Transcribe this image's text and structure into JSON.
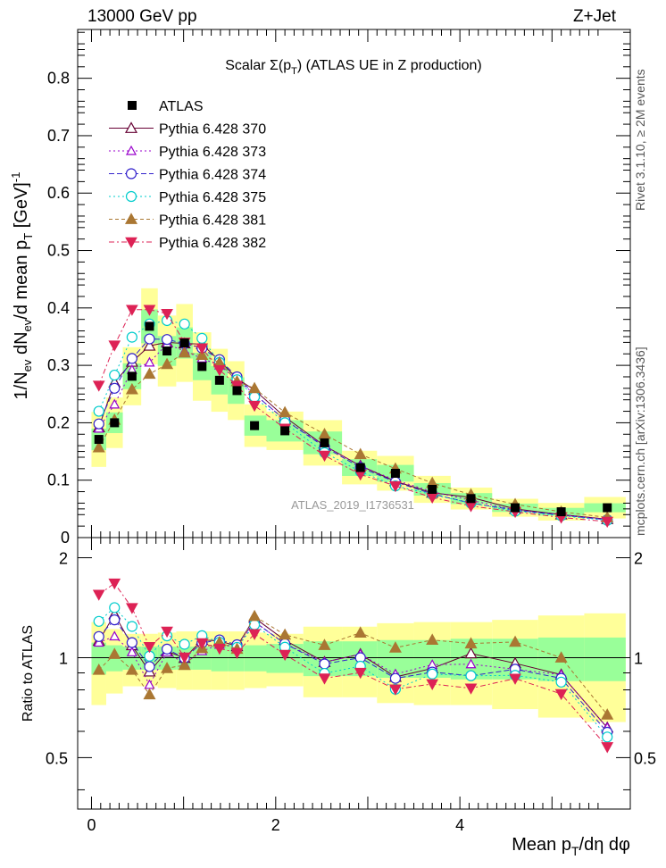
{
  "header": {
    "left": "13000 GeV pp",
    "right": "Z+Jet"
  },
  "side_labels": {
    "rivet": "Rivet 3.1.10, ≥ 2M events",
    "mcplots": "mcplots.cern.ch [arXiv:1306.3436]"
  },
  "chart_data": {
    "type": "scatter",
    "title": "Scalar Σ(p_T) (ATLAS UE in Z production)",
    "xlabel": "Mean p_T/dη dφ",
    "ylabel": "1/N_ev dN_ev/d mean p_T [GeV]^-1",
    "ratio_ylabel": "Ratio to ATLAS",
    "watermark": "ATLAS_2019_I1736531",
    "xlim": [
      -0.15,
      5.85
    ],
    "ylim": [
      0,
      0.885
    ],
    "ratio_ylim": [
      0.35,
      2.3
    ],
    "x_ticks": [
      "0",
      "2",
      "4"
    ],
    "y_ticks": [
      "0",
      "0.1",
      "0.2",
      "0.3",
      "0.4",
      "0.5",
      "0.6",
      "0.7",
      "0.8"
    ],
    "ratio_ticks": [
      "0.5",
      "1",
      "2"
    ],
    "legend_position": "top-left",
    "bins": [
      {
        "x": 0.08,
        "lo": 0.0,
        "hi": 0.16
      },
      {
        "x": 0.25,
        "lo": 0.16,
        "hi": 0.34
      },
      {
        "x": 0.44,
        "lo": 0.34,
        "hi": 0.54
      },
      {
        "x": 0.63,
        "lo": 0.54,
        "hi": 0.72
      },
      {
        "x": 0.82,
        "lo": 0.72,
        "hi": 0.92
      },
      {
        "x": 1.01,
        "lo": 0.92,
        "hi": 1.1
      },
      {
        "x": 1.2,
        "lo": 1.1,
        "hi": 1.3
      },
      {
        "x": 1.39,
        "lo": 1.3,
        "hi": 1.48
      },
      {
        "x": 1.58,
        "lo": 1.48,
        "hi": 1.66
      },
      {
        "x": 1.77,
        "lo": 1.66,
        "hi": 1.9
      },
      {
        "x": 2.1,
        "lo": 1.9,
        "hi": 2.3
      },
      {
        "x": 2.53,
        "lo": 2.3,
        "hi": 2.72
      },
      {
        "x": 2.92,
        "lo": 2.72,
        "hi": 3.1
      },
      {
        "x": 3.3,
        "lo": 3.1,
        "hi": 3.5
      },
      {
        "x": 3.7,
        "lo": 3.5,
        "hi": 3.9
      },
      {
        "x": 4.12,
        "lo": 3.9,
        "hi": 4.35
      },
      {
        "x": 4.6,
        "lo": 4.35,
        "hi": 4.85
      },
      {
        "x": 5.1,
        "lo": 4.85,
        "hi": 5.35
      },
      {
        "x": 5.6,
        "lo": 5.35,
        "hi": 5.8
      }
    ],
    "band_inner": [
      0.11,
      0.09,
      0.08,
      0.08,
      0.08,
      0.08,
      0.08,
      0.09,
      0.09,
      0.09,
      0.1,
      0.12,
      0.12,
      0.13,
      0.13,
      0.14,
      0.14,
      0.15,
      0.15
    ],
    "band_outer": [
      0.28,
      0.22,
      0.18,
      0.18,
      0.19,
      0.2,
      0.2,
      0.2,
      0.2,
      0.19,
      0.18,
      0.24,
      0.24,
      0.27,
      0.28,
      0.28,
      0.3,
      0.34,
      0.36
    ],
    "data": {
      "name": "ATLAS",
      "values": [
        0.171,
        0.2,
        0.281,
        0.368,
        0.325,
        0.339,
        0.298,
        0.274,
        0.256,
        0.195,
        0.186,
        0.165,
        0.122,
        0.112,
        0.084,
        0.068,
        0.052,
        0.045,
        0.052
      ]
    },
    "series": [
      {
        "name": "Pythia 6.428 370",
        "color": "#660033",
        "marker": "triangle-open",
        "dash": "",
        "values": [
          0.192,
          0.27,
          0.306,
          0.334,
          0.34,
          0.338,
          0.337,
          0.308,
          0.277,
          0.257,
          0.21,
          0.16,
          0.125,
          0.098,
          0.078,
          0.07,
          0.05,
          0.04,
          0.032
        ]
      },
      {
        "name": "Pythia 6.428 373",
        "color": "#9900cc",
        "marker": "triangle-open-small",
        "dash": "2,3",
        "values": [
          0.19,
          0.232,
          0.292,
          0.305,
          0.337,
          0.325,
          0.312,
          0.3,
          0.275,
          0.25,
          0.205,
          0.16,
          0.125,
          0.1,
          0.08,
          0.065,
          0.048,
          0.04,
          0.032
        ]
      },
      {
        "name": "Pythia 6.428 374",
        "color": "#3322cc",
        "marker": "circle-open",
        "dash": "6,3",
        "values": [
          0.198,
          0.26,
          0.312,
          0.346,
          0.345,
          0.338,
          0.33,
          0.31,
          0.28,
          0.25,
          0.205,
          0.158,
          0.122,
          0.097,
          0.076,
          0.06,
          0.048,
          0.039,
          0.031
        ]
      },
      {
        "name": "Pythia 6.428 375",
        "color": "#00cccc",
        "marker": "circle-open",
        "dash": "2,3",
        "values": [
          0.22,
          0.283,
          0.349,
          0.372,
          0.378,
          0.372,
          0.347,
          0.305,
          0.275,
          0.245,
          0.2,
          0.148,
          0.115,
          0.09,
          0.075,
          0.06,
          0.046,
          0.038,
          0.03
        ]
      },
      {
        "name": "Pythia 6.428 381",
        "color": "#aa7733",
        "marker": "triangle-filled",
        "dash": "4,3",
        "values": [
          0.157,
          0.205,
          0.258,
          0.285,
          0.302,
          0.322,
          0.318,
          0.305,
          0.272,
          0.26,
          0.218,
          0.18,
          0.145,
          0.12,
          0.095,
          0.075,
          0.058,
          0.045,
          0.035
        ]
      },
      {
        "name": "Pythia 6.428 382",
        "color": "#dd2255",
        "marker": "triangle-down-filled",
        "dash": "6,3,2,3",
        "values": [
          0.265,
          0.335,
          0.397,
          0.397,
          0.39,
          0.34,
          0.33,
          0.292,
          0.265,
          0.23,
          0.19,
          0.143,
          0.11,
          0.09,
          0.07,
          0.055,
          0.045,
          0.035,
          0.028
        ]
      }
    ]
  }
}
